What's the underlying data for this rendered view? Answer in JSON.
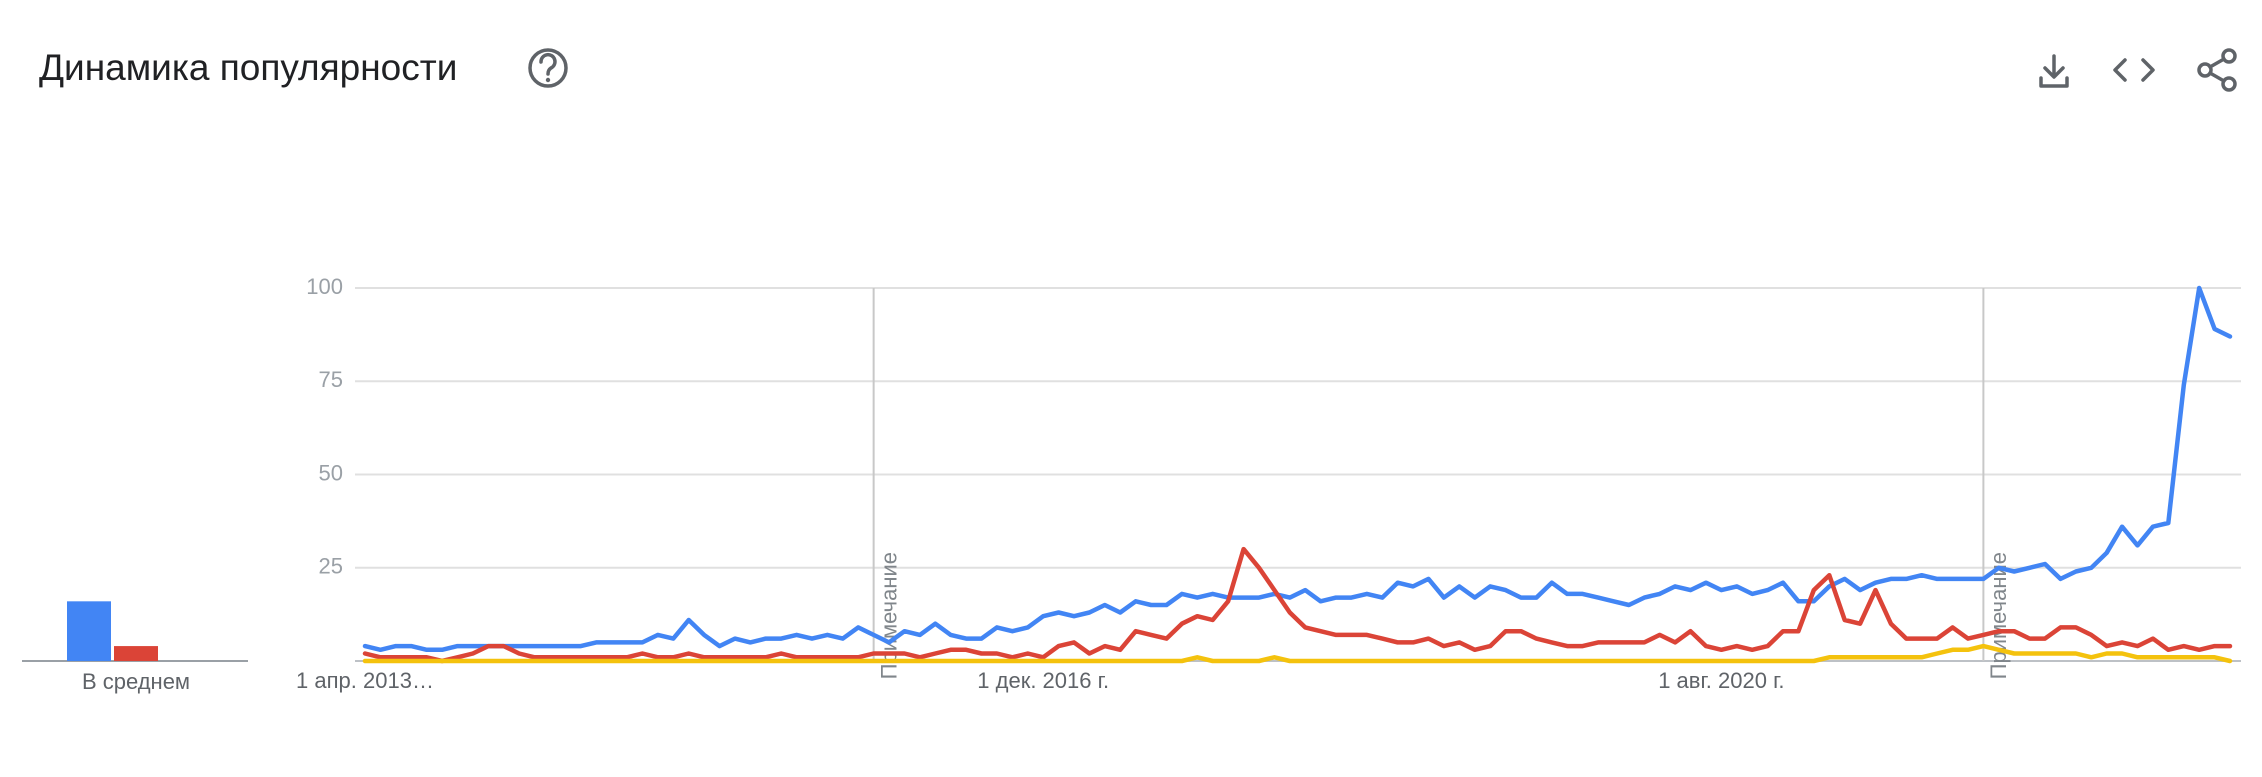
{
  "header": {
    "title": "Динамика популярности"
  },
  "chart_data": [
    {
      "type": "bar",
      "categories": [
        "В среднем"
      ],
      "ylim": [
        0,
        100
      ],
      "series": [
        {
          "color": "#4285f4",
          "values": [
            16
          ]
        },
        {
          "color": "#db4437",
          "values": [
            4
          ]
        },
        {
          "color": "#f4c20d",
          "values": [
            0
          ]
        }
      ]
    },
    {
      "type": "line",
      "ylim": [
        0,
        100
      ],
      "yticks": [
        25,
        50,
        75,
        100
      ],
      "grid": true,
      "categories": [
        "1 апр. 2013…",
        null,
        null,
        null,
        null,
        null,
        null,
        null,
        null,
        null,
        null,
        null,
        null,
        null,
        null,
        null,
        null,
        null,
        null,
        null,
        null,
        null,
        null,
        null,
        null,
        null,
        null,
        null,
        null,
        null,
        null,
        null,
        null,
        null,
        null,
        null,
        null,
        null,
        null,
        null,
        null,
        null,
        null,
        null,
        "1 дек. 2016 г.",
        null,
        null,
        null,
        null,
        null,
        null,
        null,
        null,
        null,
        null,
        null,
        null,
        null,
        null,
        null,
        null,
        null,
        null,
        null,
        null,
        null,
        null,
        null,
        null,
        null,
        null,
        null,
        null,
        null,
        null,
        null,
        null,
        null,
        null,
        null,
        null,
        null,
        null,
        null,
        null,
        null,
        null,
        null,
        "1 авг. 2020 г.",
        null,
        null,
        null,
        null,
        null,
        null,
        null,
        null,
        null,
        null,
        null,
        null,
        null,
        null,
        null,
        null,
        null,
        null,
        null,
        null,
        null,
        null,
        null,
        null,
        null,
        null,
        null,
        null,
        null,
        null,
        null,
        null,
        null
      ],
      "annotations": [
        {
          "index": 33,
          "text": "Примечание"
        },
        {
          "index": 105,
          "text": "Примечание"
        }
      ],
      "series": [
        {
          "color": "#4285f4",
          "values": [
            4,
            3,
            4,
            4,
            3,
            3,
            4,
            4,
            4,
            4,
            4,
            4,
            4,
            4,
            4,
            5,
            5,
            5,
            5,
            7,
            6,
            11,
            7,
            4,
            6,
            5,
            6,
            6,
            7,
            6,
            7,
            6,
            9,
            7,
            5,
            8,
            7,
            10,
            7,
            6,
            6,
            9,
            8,
            9,
            12,
            13,
            12,
            13,
            15,
            13,
            16,
            15,
            15,
            18,
            17,
            18,
            17,
            17,
            17,
            18,
            17,
            19,
            16,
            17,
            17,
            18,
            17,
            21,
            20,
            22,
            17,
            20,
            17,
            20,
            19,
            17,
            17,
            21,
            18,
            18,
            17,
            16,
            15,
            17,
            18,
            20,
            19,
            21,
            19,
            20,
            18,
            19,
            21,
            16,
            16,
            20,
            22,
            19,
            21,
            22,
            22,
            23,
            22,
            22,
            22,
            22,
            25,
            24,
            25,
            26,
            22,
            24,
            25,
            29,
            36,
            31,
            36,
            37,
            74,
            100,
            89,
            87
          ]
        },
        {
          "color": "#db4437",
          "values": [
            2,
            1,
            1,
            1,
            1,
            0,
            1,
            2,
            4,
            4,
            2,
            1,
            1,
            1,
            1,
            1,
            1,
            1,
            2,
            1,
            1,
            2,
            1,
            1,
            1,
            1,
            1,
            2,
            1,
            1,
            1,
            1,
            1,
            2,
            2,
            2,
            1,
            2,
            3,
            3,
            2,
            2,
            1,
            2,
            1,
            4,
            5,
            2,
            4,
            3,
            8,
            7,
            6,
            10,
            12,
            11,
            16,
            30,
            25,
            19,
            13,
            9,
            8,
            7,
            7,
            7,
            6,
            5,
            5,
            6,
            4,
            5,
            3,
            4,
            8,
            8,
            6,
            5,
            4,
            4,
            5,
            5,
            5,
            5,
            7,
            5,
            8,
            4,
            3,
            4,
            3,
            4,
            8,
            8,
            19,
            23,
            11,
            10,
            19,
            10,
            6,
            6,
            6,
            9,
            6,
            7,
            8,
            8,
            6,
            6,
            9,
            9,
            7,
            4,
            5,
            4,
            6,
            3,
            4,
            3,
            4,
            4
          ]
        },
        {
          "color": "#f4c20d",
          "values": [
            0,
            0,
            0,
            0,
            0,
            0,
            0,
            0,
            0,
            0,
            0,
            0,
            0,
            0,
            0,
            0,
            0,
            0,
            0,
            0,
            0,
            0,
            0,
            0,
            0,
            0,
            0,
            0,
            0,
            0,
            0,
            0,
            0,
            0,
            0,
            0,
            0,
            0,
            0,
            0,
            0,
            0,
            0,
            0,
            0,
            0,
            0,
            0,
            0,
            0,
            0,
            0,
            0,
            0,
            1,
            0,
            0,
            0,
            0,
            1,
            0,
            0,
            0,
            0,
            0,
            0,
            0,
            0,
            0,
            0,
            0,
            0,
            0,
            0,
            0,
            0,
            0,
            0,
            0,
            0,
            0,
            0,
            0,
            0,
            0,
            0,
            0,
            0,
            0,
            0,
            0,
            0,
            0,
            0,
            0,
            1,
            1,
            1,
            1,
            1,
            1,
            1,
            2,
            3,
            3,
            4,
            3,
            2,
            2,
            2,
            2,
            2,
            1,
            2,
            2,
            1,
            1,
            1,
            1,
            1,
            1,
            0
          ]
        }
      ]
    }
  ]
}
